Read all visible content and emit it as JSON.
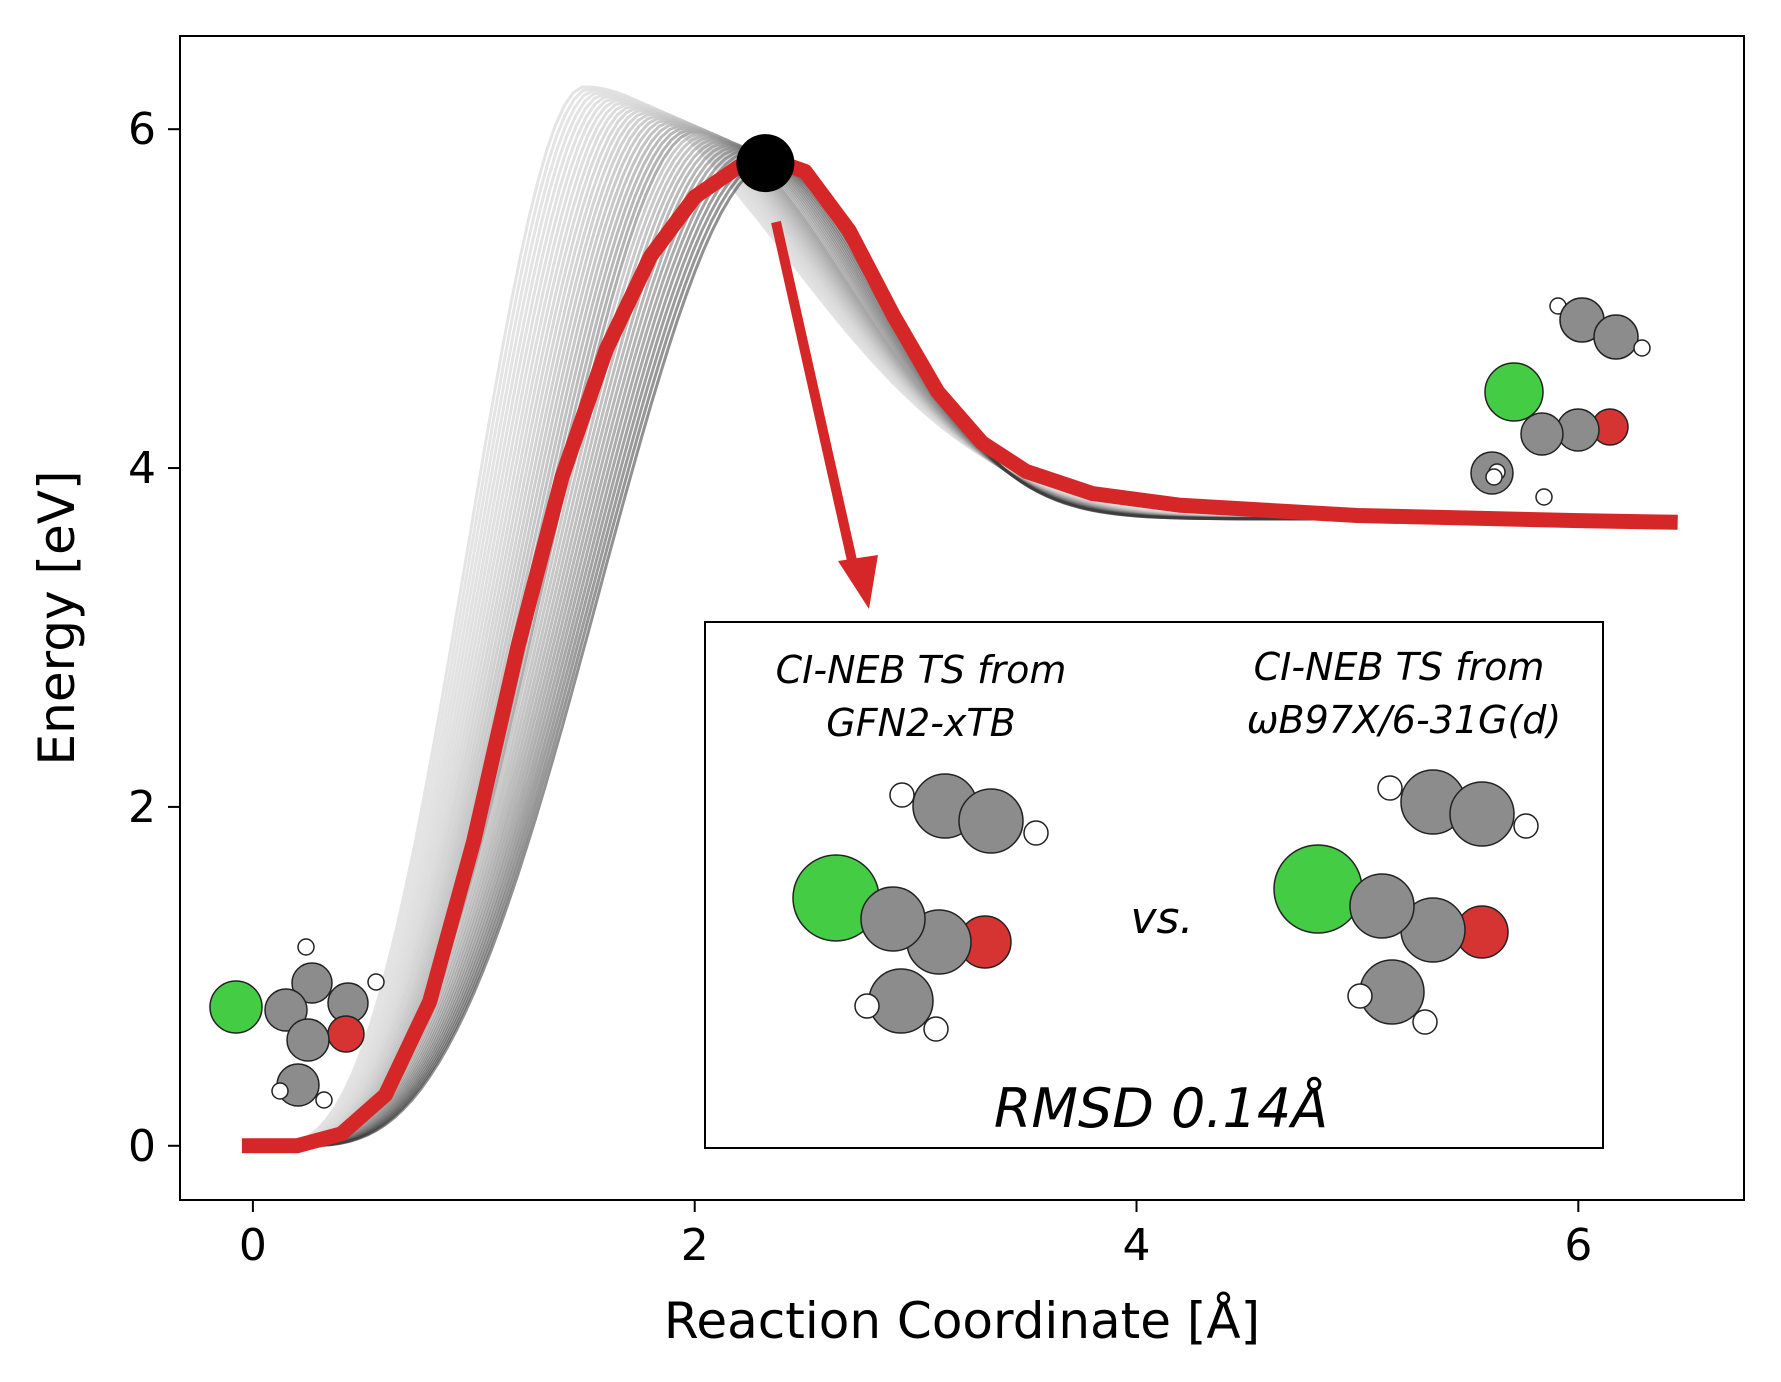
{
  "chart_data": {
    "type": "line",
    "xlabel": "Reaction Coordinate [Å]",
    "ylabel": "Energy [eV]",
    "xlim": [
      -0.33,
      6.75
    ],
    "ylim": [
      -0.32,
      6.55
    ],
    "xticks": [
      0,
      2,
      4,
      6
    ],
    "yticks": [
      0,
      2,
      4,
      6
    ],
    "grid": false,
    "colors": {
      "highlight": "#d62728",
      "background_paths": "#d9d9d9",
      "converged_paths": "#3a3a3a",
      "ts_marker": "#000000",
      "chlorine": "#44cc44",
      "carbon": "#8c8c8c",
      "oxygen": "#d63333",
      "hydrogen": "#ffffff"
    },
    "series": [
      {
        "role": "highlighted-path",
        "points": [
          [
            -0.05,
            0.0
          ],
          [
            0.2,
            0.0
          ],
          [
            0.4,
            0.07
          ],
          [
            0.6,
            0.3
          ],
          [
            0.8,
            0.85
          ],
          [
            1.0,
            1.8
          ],
          [
            1.2,
            2.95
          ],
          [
            1.4,
            3.95
          ],
          [
            1.6,
            4.7
          ],
          [
            1.8,
            5.25
          ],
          [
            2.0,
            5.6
          ],
          [
            2.2,
            5.78
          ],
          [
            2.35,
            5.82
          ],
          [
            2.5,
            5.75
          ],
          [
            2.7,
            5.4
          ],
          [
            2.9,
            4.9
          ],
          [
            3.1,
            4.45
          ],
          [
            3.3,
            4.15
          ],
          [
            3.5,
            3.98
          ],
          [
            3.8,
            3.85
          ],
          [
            4.2,
            3.78
          ],
          [
            5.0,
            3.72
          ],
          [
            6.0,
            3.69
          ],
          [
            6.45,
            3.68
          ]
        ]
      }
    ],
    "background_paths": {
      "count": 40,
      "peak_x_range": [
        1.5,
        2.35
      ],
      "peak_y_range": [
        5.8,
        6.25
      ],
      "final_y": 3.7
    },
    "transition_state": {
      "x": 2.32,
      "y": 5.8
    }
  },
  "inset": {
    "left_caption": [
      "CI-NEB TS from",
      "GFN2-xTB"
    ],
    "right_caption": [
      "CI-NEB TS from",
      "ωB97X/6-31G(d)"
    ],
    "vs_label": "vs.",
    "rmsd_label": "RMSD 0.14Å"
  },
  "molecules": {
    "reactant_elements": [
      "Cl",
      "C",
      "C",
      "C",
      "O",
      "C",
      "H",
      "H",
      "H",
      "H"
    ],
    "product_elements": [
      "Cl",
      "C",
      "C",
      "O",
      "C",
      "C",
      "C",
      "H",
      "H",
      "H",
      "H",
      "H"
    ]
  }
}
